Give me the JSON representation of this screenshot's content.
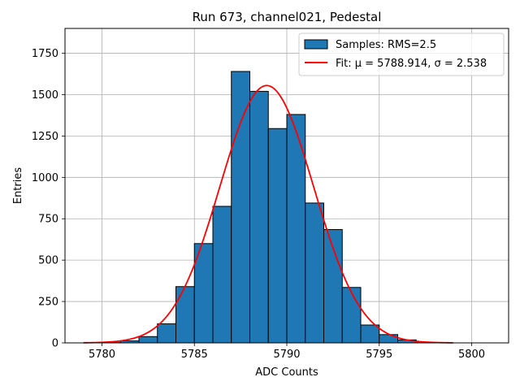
{
  "chart_data": {
    "type": "bar",
    "title": "Run 673, channel021, Pedestal",
    "xlabel": "ADC Counts",
    "ylabel": "Entries",
    "xlim": [
      5778,
      5802
    ],
    "ylim": [
      0,
      1900
    ],
    "xticks": [
      5780,
      5785,
      5790,
      5795,
      5800
    ],
    "yticks": [
      0,
      250,
      500,
      750,
      1000,
      1250,
      1500,
      1750
    ],
    "grid": true,
    "legend_position": "top-right",
    "histogram": {
      "name": "Samples: RMS=2.5",
      "color": "#1f77b4",
      "edge_color": "#000000",
      "bin_width": 1,
      "bin_starts": [
        5780,
        5781,
        5782,
        5783,
        5784,
        5785,
        5786,
        5787,
        5788,
        5789,
        5790,
        5791,
        5792,
        5793,
        5794,
        5795,
        5796,
        5797
      ],
      "values": [
        3,
        12,
        38,
        115,
        340,
        600,
        825,
        1640,
        1520,
        1295,
        1380,
        845,
        685,
        335,
        108,
        50,
        18,
        3
      ]
    },
    "fit": {
      "name": "Fit: μ = 5788.914, σ = 2.538",
      "color": "#ff0000",
      "mu": 5788.914,
      "sigma": 2.538,
      "amplitude": 1555,
      "x_range": [
        5779,
        5799
      ]
    }
  }
}
